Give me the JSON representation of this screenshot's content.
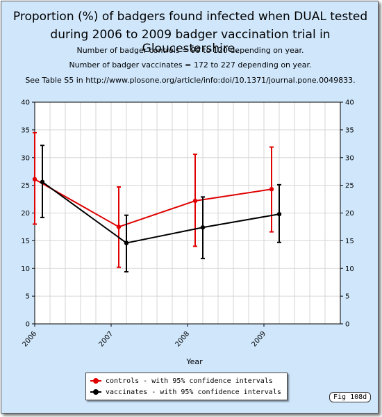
{
  "figure_label": "Fig 108d",
  "chart_data": {
    "type": "line",
    "title": "Proportion (%) of badgers found infected when DUAL tested",
    "title_line2": "during 2006 to 2009 badger vaccination trial in Gloucestershire.",
    "subtitles": [
      "Number of badger controls = 99 to 120 depending on year.",
      "Number of badger vaccinates = 172 to 227 depending on year.",
      "See Table S5 in http://www.plosone.org/article/info:doi/10.1371/journal.pone.0049833."
    ],
    "xlabel": "Year",
    "ylabel": "",
    "x_ticks": [
      "2006",
      "2007",
      "2008",
      "2009"
    ],
    "y_ticks": [
      0,
      5,
      10,
      15,
      20,
      25,
      30,
      35,
      40
    ],
    "ylim": [
      0,
      40
    ],
    "grid": true,
    "legend_position": "bottom",
    "series": [
      {
        "name": "controls - with 95% confidence intervals",
        "color": "#e00000",
        "x": [
          2006.0,
          2007.1,
          2008.1,
          2009.1
        ],
        "values": [
          26.1,
          17.5,
          22.2,
          24.3
        ],
        "lower": [
          18.0,
          10.2,
          14.0,
          16.6
        ],
        "upper": [
          34.5,
          24.7,
          30.6,
          31.9
        ]
      },
      {
        "name": "vaccinates - with 95% confidence intervals",
        "color": "#000000",
        "x": [
          2006.1,
          2007.2,
          2008.2,
          2009.2
        ],
        "values": [
          25.6,
          14.6,
          17.4,
          19.8
        ],
        "lower": [
          19.2,
          9.4,
          11.8,
          14.7
        ],
        "upper": [
          32.2,
          19.6,
          22.9,
          25.1
        ]
      }
    ]
  }
}
